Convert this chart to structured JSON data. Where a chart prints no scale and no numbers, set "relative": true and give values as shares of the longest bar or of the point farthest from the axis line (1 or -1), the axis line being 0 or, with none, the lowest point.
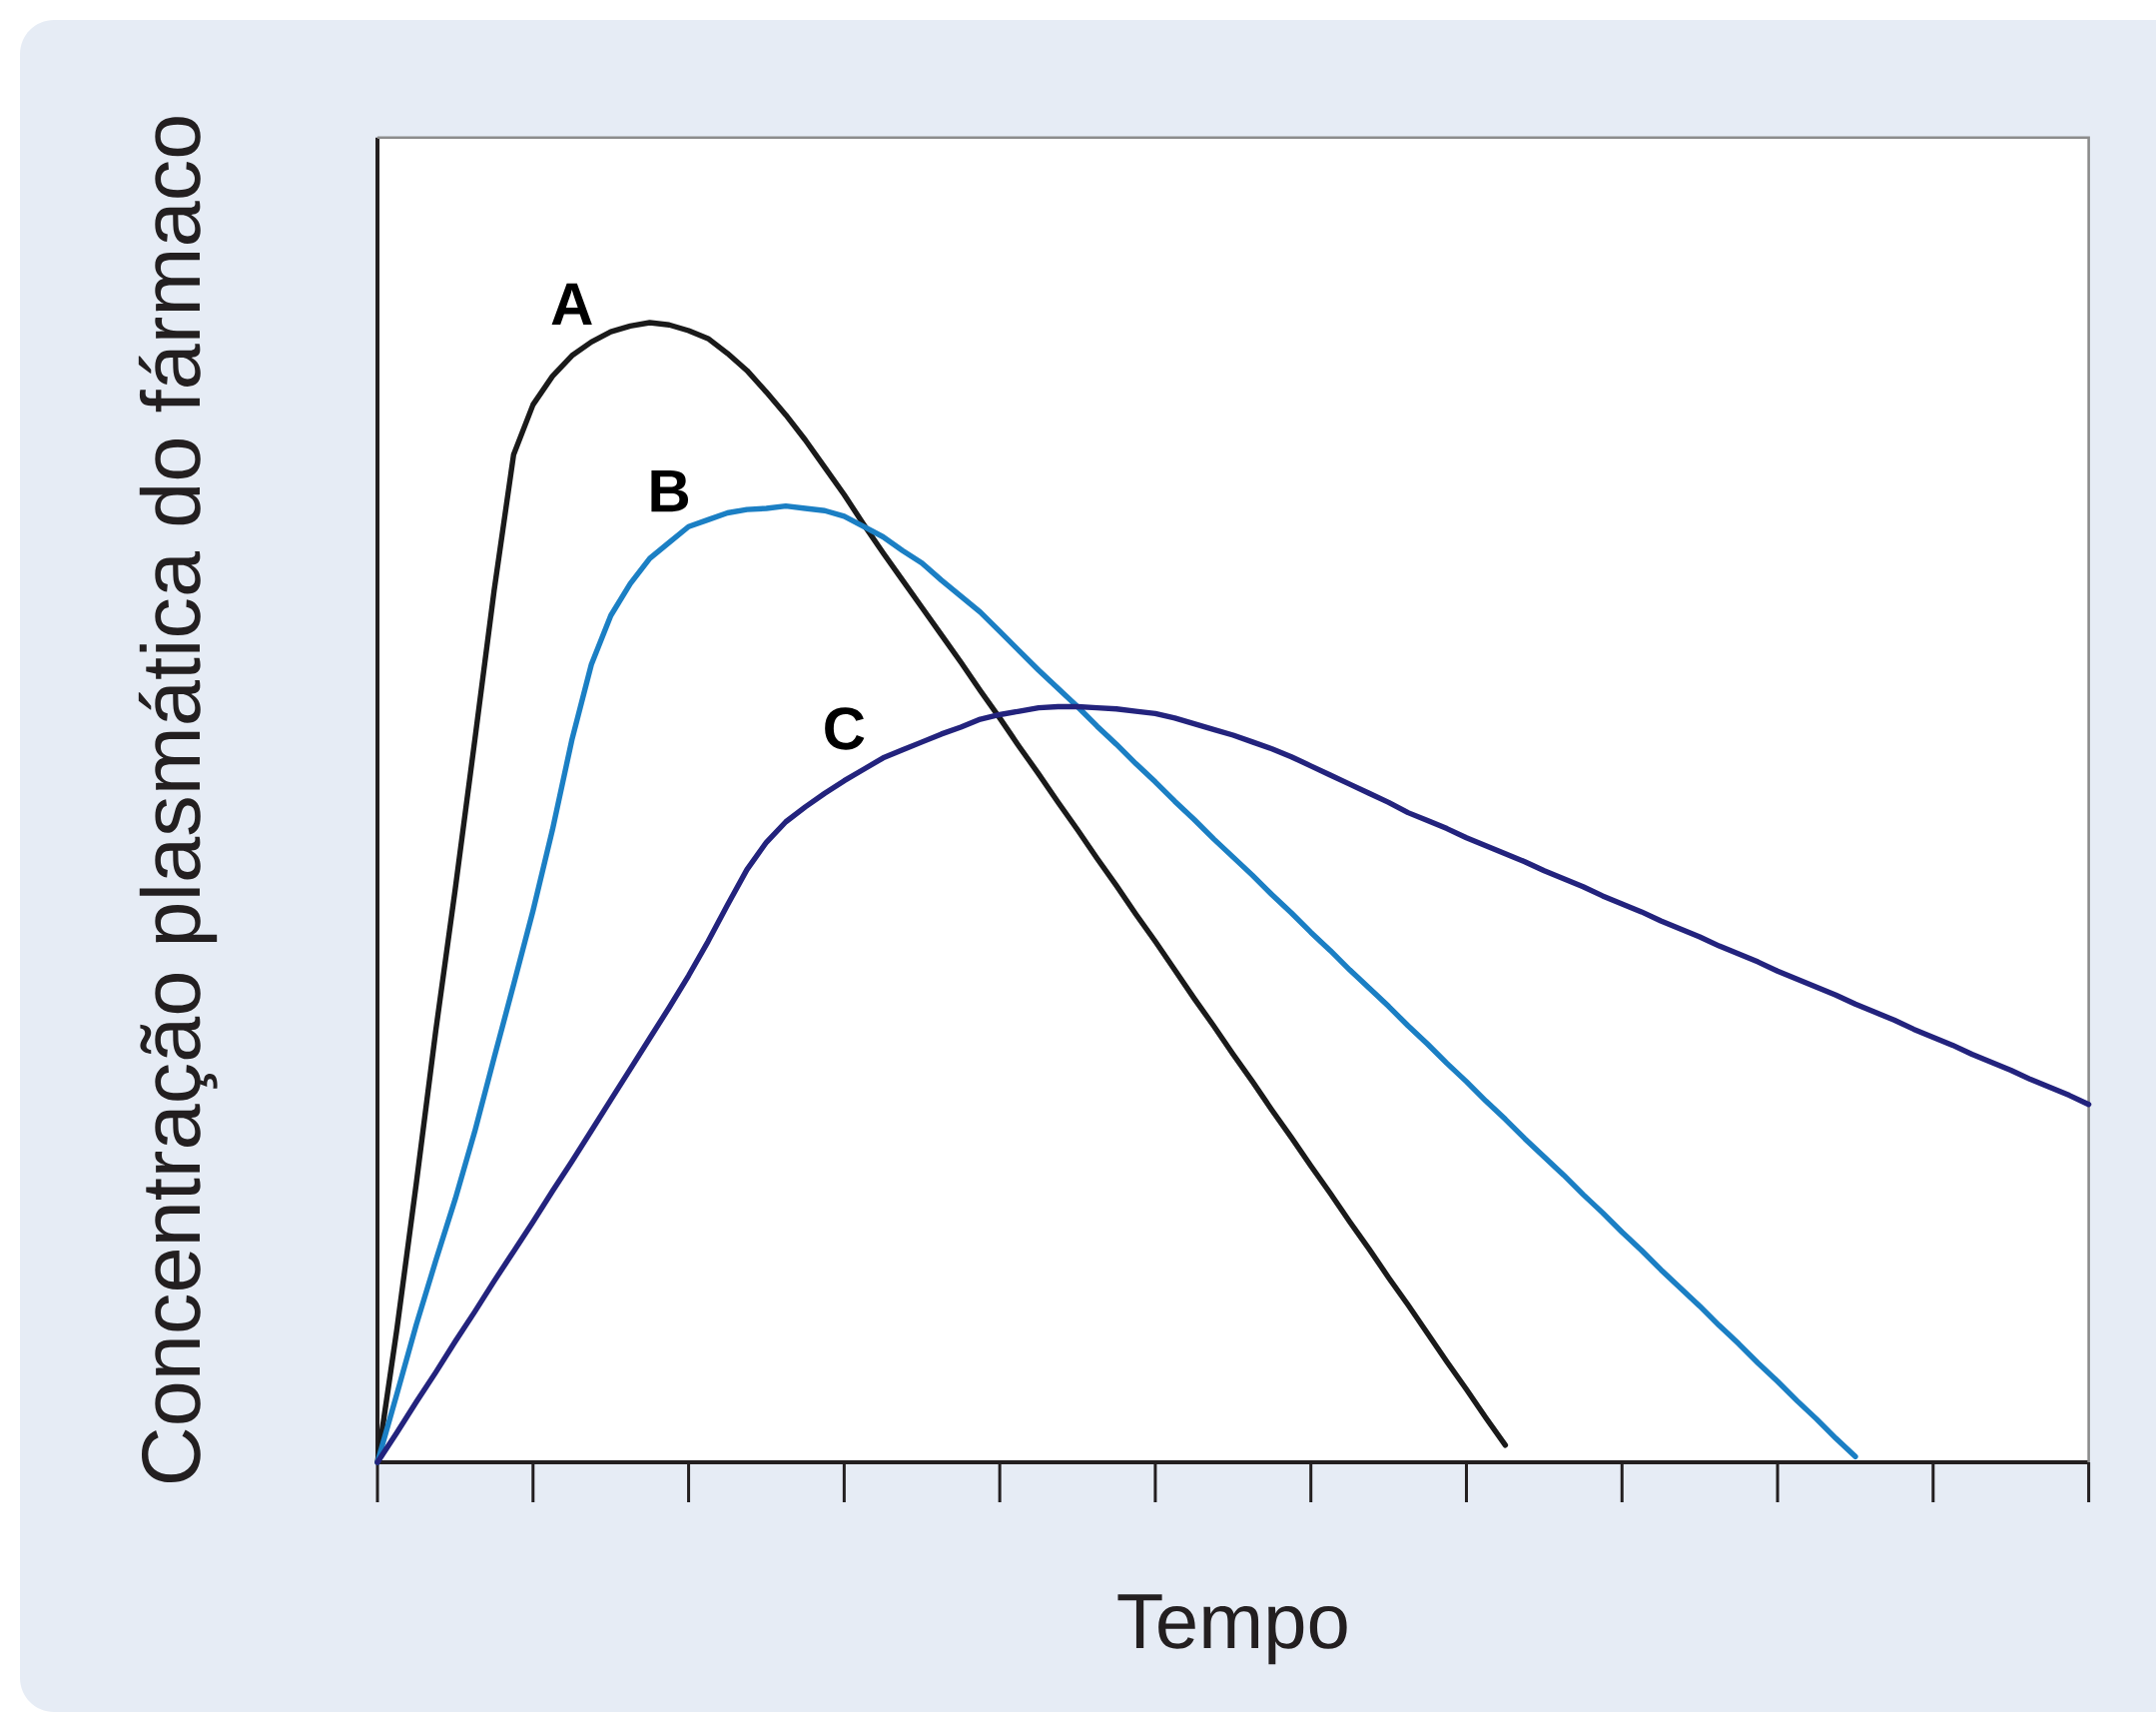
{
  "chart_data": {
    "type": "line",
    "xlabel": "Tempo",
    "ylabel": "Concentração plasmática do fármaco",
    "relative": true,
    "categories": [
      null,
      null,
      null,
      null,
      null,
      null,
      null,
      null,
      null,
      null,
      null,
      null,
      null,
      null,
      null,
      null,
      null,
      null,
      null,
      null,
      null,
      null,
      null,
      null,
      null,
      null,
      null,
      null,
      null,
      null,
      null,
      null,
      null,
      null,
      null,
      null,
      null,
      null,
      null,
      null,
      null,
      null,
      null,
      null,
      null,
      null,
      null,
      null,
      null,
      null,
      null,
      null,
      null,
      null,
      null,
      null,
      null,
      null,
      null,
      null,
      null,
      null,
      null,
      null,
      null,
      null,
      null,
      null,
      null,
      null,
      null,
      null,
      null,
      null,
      null,
      null,
      null,
      null,
      null,
      null,
      null,
      null,
      null,
      null,
      null,
      null,
      null,
      null,
      null
    ],
    "series": [
      {
        "name": "A",
        "color": "#1a1a1a",
        "values": [
          0,
          0.117,
          0.245,
          0.379,
          0.503,
          0.633,
          0.765,
          0.884,
          0.928,
          0.953,
          0.971,
          0.983,
          0.992,
          0.997,
          1,
          0.998,
          0.993,
          0.986,
          0.973,
          0.958,
          0.939,
          0.919,
          0.897,
          0.873,
          0.849,
          0.823,
          0.798,
          0.774,
          0.75,
          0.726,
          0.702,
          0.677,
          0.653,
          0.628,
          0.604,
          0.579,
          0.555,
          0.53,
          0.506,
          0.481,
          0.457,
          0.432,
          0.407,
          0.383,
          0.358,
          0.334,
          0.309,
          0.285,
          0.26,
          0.236,
          0.211,
          0.187,
          0.162,
          0.138,
          0.113,
          0.088,
          0.064,
          0.039,
          0.015,
          null,
          null,
          null,
          null,
          null,
          null,
          null,
          null,
          null,
          null,
          null,
          null,
          null,
          null,
          null,
          null,
          null,
          null,
          null,
          null,
          null,
          null,
          null,
          null,
          null,
          null,
          null,
          null,
          null,
          null
        ]
      },
      {
        "name": "B",
        "color": "#1b7fc4",
        "values": [
          0,
          0.06,
          0.121,
          0.177,
          0.231,
          0.29,
          0.355,
          0.419,
          0.484,
          0.555,
          0.634,
          0.7,
          0.743,
          0.771,
          0.793,
          0.807,
          0.821,
          0.827,
          0.833,
          0.836,
          0.837,
          0.839,
          0.837,
          0.835,
          0.83,
          0.821,
          0.812,
          0.8,
          0.789,
          0.774,
          0.76,
          0.746,
          0.729,
          0.712,
          0.695,
          0.679,
          0.663,
          0.646,
          0.63,
          0.613,
          0.597,
          0.58,
          0.564,
          0.547,
          0.531,
          0.515,
          0.498,
          0.482,
          0.465,
          0.449,
          0.432,
          0.416,
          0.4,
          0.383,
          0.367,
          0.35,
          0.334,
          0.317,
          0.301,
          0.284,
          0.268,
          0.252,
          0.235,
          0.219,
          0.202,
          0.186,
          0.169,
          0.153,
          0.137,
          0.12,
          0.104,
          0.087,
          0.071,
          0.054,
          0.038,
          0.021,
          0.005,
          null,
          null,
          null,
          null,
          null,
          null,
          null,
          null,
          null,
          null,
          null,
          null
        ]
      },
      {
        "name": "C",
        "color": "#23237d",
        "values": [
          0,
          0.026,
          0.053,
          0.079,
          0.106,
          0.132,
          0.159,
          0.185,
          0.211,
          0.238,
          0.264,
          0.291,
          0.318,
          0.345,
          0.372,
          0.399,
          0.427,
          0.457,
          0.489,
          0.52,
          0.544,
          0.562,
          0.575,
          0.587,
          0.598,
          0.608,
          0.618,
          0.625,
          0.632,
          0.639,
          0.645,
          0.652,
          0.656,
          0.659,
          0.662,
          0.663,
          0.663,
          0.662,
          0.661,
          0.659,
          0.657,
          0.653,
          0.648,
          0.643,
          0.638,
          0.632,
          0.626,
          0.619,
          0.611,
          0.603,
          0.595,
          0.587,
          0.579,
          0.57,
          0.563,
          0.556,
          0.548,
          0.541,
          0.534,
          0.527,
          0.519,
          0.512,
          0.505,
          0.497,
          0.49,
          0.483,
          0.475,
          0.468,
          0.461,
          0.453,
          0.446,
          0.439,
          0.431,
          0.424,
          0.417,
          0.41,
          0.402,
          0.395,
          0.388,
          0.38,
          0.373,
          0.366,
          0.358,
          0.351,
          0.344,
          0.336,
          0.329,
          0.322,
          0.314
        ]
      }
    ]
  }
}
